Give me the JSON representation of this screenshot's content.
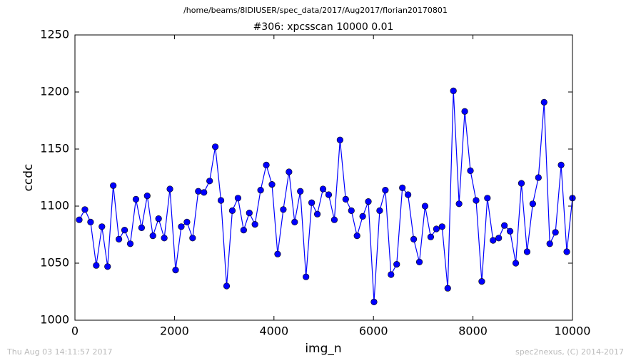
{
  "chart_data": {
    "type": "line",
    "suptitle": "/home/beams/8IDIUSER/spec_data/2017/Aug2017/florian20170801",
    "title": "#306: xpcsscan 10000 0.01",
    "xlabel": "img_n",
    "ylabel": "ccdc",
    "timestamp": "Thu Aug 03 14:11:57 2017",
    "credit": "spec2nexus, (C) 2014-2017",
    "x": [
      86,
      200,
      314,
      428,
      542,
      656,
      770,
      884,
      998,
      1112,
      1226,
      1340,
      1453,
      1567,
      1681,
      1795,
      1909,
      2023,
      2137,
      2251,
      2365,
      2479,
      2593,
      2707,
      2821,
      2935,
      3049,
      3163,
      3277,
      3391,
      3505,
      3618,
      3732,
      3846,
      3960,
      4074,
      4188,
      4302,
      4416,
      4530,
      4644,
      4758,
      4872,
      4986,
      5100,
      5214,
      5328,
      5442,
      5556,
      5670,
      5784,
      5897,
      6011,
      6125,
      6239,
      6353,
      6467,
      6581,
      6695,
      6809,
      6923,
      7037,
      7151,
      7265,
      7379,
      7493,
      7607,
      7721,
      7835,
      7949,
      8063,
      8177,
      8290,
      8404,
      8518,
      8632,
      8746,
      8860,
      8974,
      9088,
      9202,
      9316,
      9430,
      9544,
      9658,
      9772,
      9886,
      10000
    ],
    "series": [
      {
        "color": "#0000ff",
        "values": [
          1088,
          1097,
          1086,
          1048,
          1082,
          1047,
          1118,
          1071,
          1079,
          1067,
          1106,
          1081,
          1109,
          1074,
          1089,
          1072,
          1115,
          1044,
          1082,
          1086,
          1072,
          1113,
          1112,
          1122,
          1152,
          1105,
          1030,
          1096,
          1107,
          1079,
          1094,
          1084,
          1114,
          1136,
          1119,
          1058,
          1097,
          1130,
          1086,
          1113,
          1038,
          1103,
          1093,
          1115,
          1110,
          1088,
          1158,
          1106,
          1096,
          1074,
          1091,
          1104,
          1016,
          1096,
          1114,
          1040,
          1049,
          1116,
          1110,
          1071,
          1051,
          1100,
          1073,
          1080,
          1082,
          1028,
          1201,
          1102,
          1183,
          1131,
          1105,
          1034,
          1107,
          1070,
          1072,
          1083,
          1078,
          1050,
          1120,
          1060,
          1102,
          1125,
          1191,
          1067,
          1077,
          1136,
          1060,
          1107
        ]
      }
    ],
    "xlim": [
      0,
      10000
    ],
    "xticks": [
      0,
      2000,
      4000,
      6000,
      8000,
      10000
    ],
    "ylim": [
      1000,
      1250
    ],
    "yticks": [
      1000,
      1050,
      1100,
      1150,
      1200,
      1250
    ]
  }
}
